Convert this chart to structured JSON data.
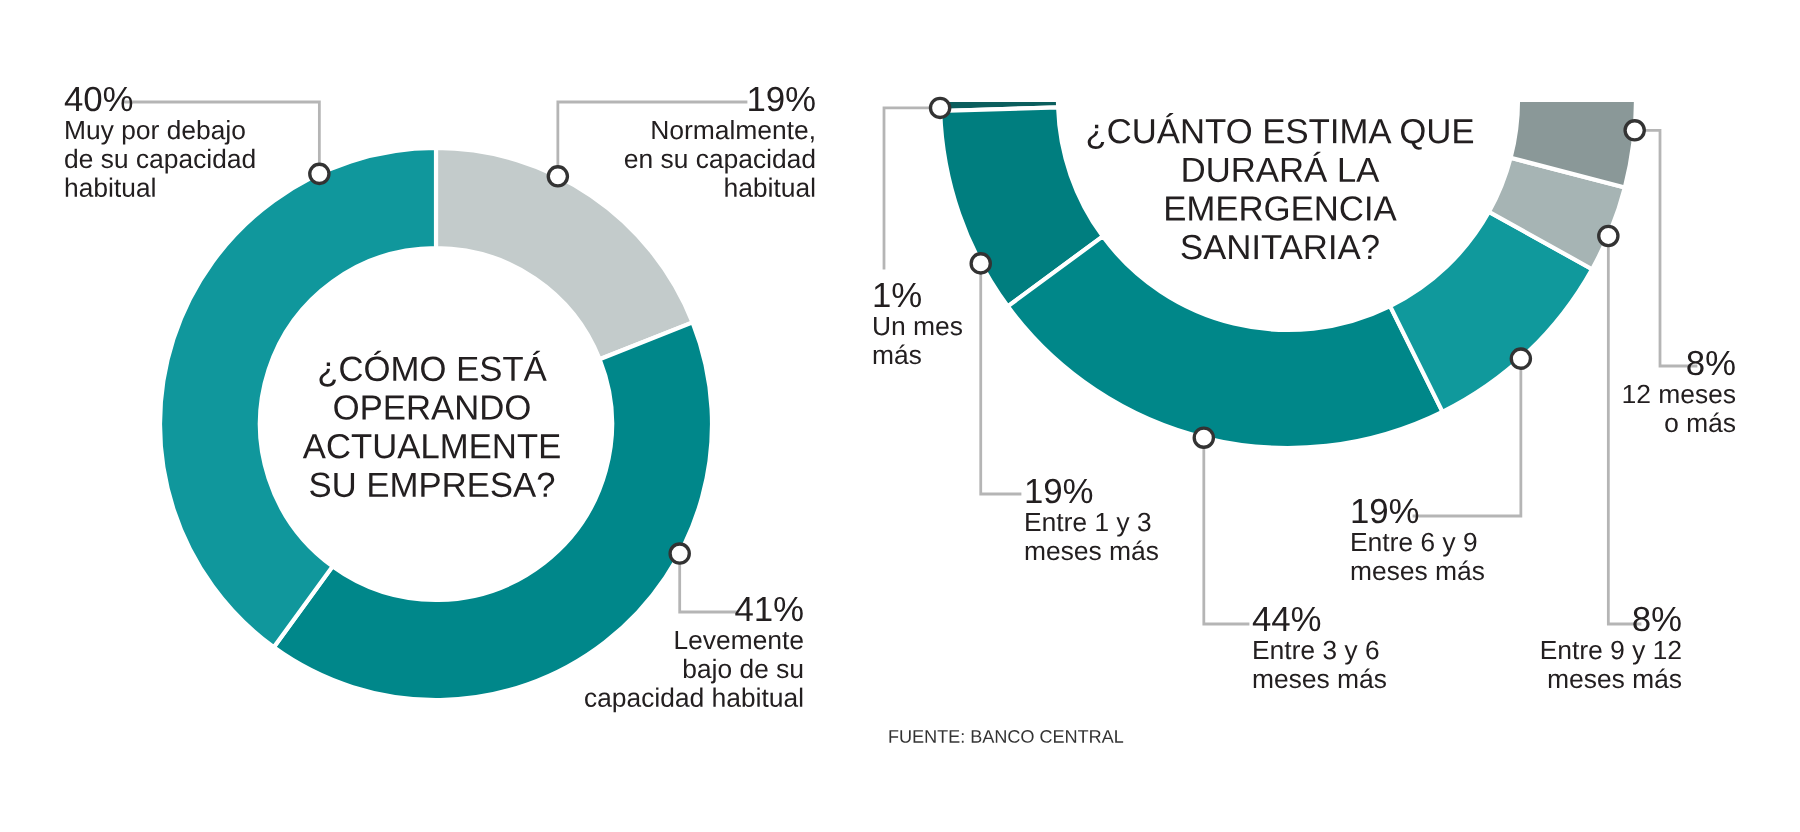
{
  "chart_data": [
    {
      "type": "donut",
      "title": "¿CÓMO ESTÁ\nOPERANDO\nACTUALMENTE\nSU EMPRESA?",
      "categories": [
        "Normalmente,\nen su capacidad\nhabitual",
        "Levemente\nbajo de su\ncapacidad habitual",
        "Muy por debajo\nde su capacidad\nhabitual"
      ],
      "values": [
        19,
        41,
        40
      ],
      "value_labels": [
        "19%",
        "41%",
        "40%"
      ],
      "colors": [
        "#c3cbcb",
        "#00878a",
        "#10979c"
      ]
    },
    {
      "type": "donut",
      "title": "¿CUÁNTO ESTIMA QUE\nDURARÁ LA\nEMERGENCIA\nSANITARIA?",
      "categories": [
        "Un mes\nmás",
        "Entre 1 y 3\nmeses más",
        "Entre 3 y 6\nmeses más",
        "Entre 6 y 9\nmeses más",
        "Entre 9 y 12\nmeses más",
        "12 meses\no más"
      ],
      "values": [
        1,
        19,
        44,
        19,
        8,
        8
      ],
      "value_labels": [
        "1%",
        "19%",
        "44%",
        "19%",
        "8%",
        "8%"
      ],
      "colors": [
        "#0b5e5d",
        "#007e7f",
        "#008789",
        "#10999c",
        "#a6b4b4",
        "#8a9898"
      ],
      "annotations": [
        "FUENTE: BANCO CENTRAL"
      ]
    }
  ]
}
